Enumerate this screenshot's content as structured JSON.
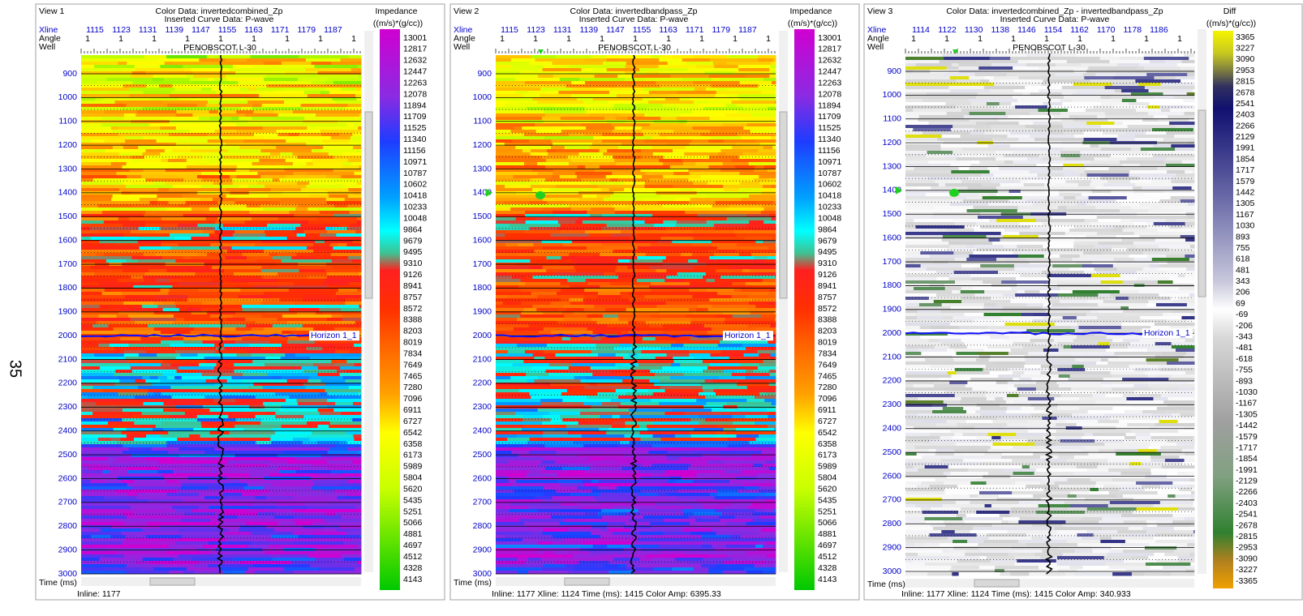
{
  "page_number": "35",
  "panels": [
    {
      "view": "View 1",
      "color_data": "Color Data: invertedcombined_Zp",
      "curve_data": "Inserted Curve Data: P-wave",
      "row_labels": [
        "Xline",
        "Angle",
        "Well"
      ],
      "xlines": [
        1115,
        1123,
        1131,
        1139,
        1147,
        1155,
        1163,
        1171,
        1179,
        1187
      ],
      "angles": [
        1,
        1,
        1,
        1,
        1,
        1,
        1,
        1,
        1
      ],
      "well": "PENOBSCOT L-30",
      "times": [
        900,
        1000,
        1100,
        1200,
        1300,
        1400,
        1500,
        1600,
        1700,
        1800,
        1900,
        2000,
        2100,
        2200,
        2300,
        2400,
        2500,
        2600,
        2700,
        2800,
        2900,
        3000
      ],
      "time_label": "Time (ms)",
      "horizon": "Horizon 1_1",
      "colorbar_title": "Impedance",
      "colorbar_units": "((m/s)*(g/cc))",
      "colorbar_labels": [
        13001,
        12817,
        12632,
        12447,
        12263,
        12078,
        11894,
        11709,
        11525,
        11340,
        11156,
        10971,
        10787,
        10602,
        10418,
        10233,
        10048,
        9864,
        9679,
        9495,
        9310,
        9126,
        8941,
        8757,
        8572,
        8388,
        8203,
        8019,
        7834,
        7649,
        7465,
        7280,
        7096,
        6911,
        6727,
        6542,
        6358,
        6173,
        5989,
        5804,
        5620,
        5435,
        5251,
        5066,
        4881,
        4697,
        4512,
        4328,
        4143
      ],
      "status": "Inline: 1177"
    },
    {
      "view": "View 2",
      "color_data": "Color Data: invertedbandpass_Zp",
      "curve_data": "Inserted Curve Data: P-wave",
      "row_labels": [
        "Xline",
        "Angle",
        "Well"
      ],
      "xlines": [
        1115,
        1123,
        1131,
        1139,
        1147,
        1155,
        1163,
        1171,
        1179,
        1187
      ],
      "angles": [
        1,
        1,
        1,
        1,
        1,
        1,
        1,
        1,
        1
      ],
      "well": "PENOBSCOT L-30",
      "times": [
        900,
        1000,
        1100,
        1200,
        1300,
        1400,
        1500,
        1600,
        1700,
        1800,
        1900,
        2000,
        2100,
        2200,
        2300,
        2400,
        2500,
        2600,
        2700,
        2800,
        2900,
        3000
      ],
      "time_label": "Time (ms)",
      "horizon": "Horizon 1_1",
      "colorbar_title": "Impedance",
      "colorbar_units": "((m/s)*(g/cc))",
      "colorbar_labels": [
        13001,
        12817,
        12632,
        12447,
        12263,
        12078,
        11894,
        11709,
        11525,
        11340,
        11156,
        10971,
        10787,
        10602,
        10418,
        10233,
        10048,
        9864,
        9679,
        9495,
        9310,
        9126,
        8941,
        8757,
        8572,
        8388,
        8203,
        8019,
        7834,
        7649,
        7465,
        7280,
        7096,
        6911,
        6727,
        6542,
        6358,
        6173,
        5989,
        5804,
        5620,
        5435,
        5251,
        5066,
        4881,
        4697,
        4512,
        4328,
        4143
      ],
      "status": "Inline: 1177 Xline: 1124 Time (ms): 1415 Color Amp: 6395.33"
    },
    {
      "view": "View 3",
      "color_data": "Color Data: invertedcombined_Zp - invertedbandpass_Zp",
      "curve_data": "Inserted Curve Data: P-wave",
      "row_labels": [
        "Xline",
        "Angle",
        "Well"
      ],
      "xlines": [
        1114,
        1122,
        1130,
        1138,
        1146,
        1154,
        1162,
        1170,
        1178,
        1186
      ],
      "angles": [
        1,
        1,
        1,
        1,
        1,
        1,
        1,
        1,
        1
      ],
      "well": "PENOBSCOT L-30",
      "times": [
        900,
        1000,
        1100,
        1200,
        1300,
        1400,
        1500,
        1600,
        1700,
        1800,
        1900,
        2000,
        2100,
        2200,
        2300,
        2400,
        2500,
        2600,
        2700,
        2800,
        2900,
        3000
      ],
      "time_label": "Time (ms)",
      "horizon": "Horizon 1_1",
      "colorbar_title": "Diff",
      "colorbar_units": "((m/s)*(g/cc))",
      "colorbar_labels": [
        3365,
        3227,
        3090,
        2953,
        2815,
        2678,
        2541,
        2403,
        2266,
        2129,
        1991,
        1854,
        1717,
        1579,
        1442,
        1305,
        1167,
        1030,
        893,
        755,
        618,
        481,
        343,
        206,
        69,
        -69,
        -206,
        -343,
        -481,
        -618,
        -755,
        -893,
        -1030,
        -1167,
        -1305,
        -1442,
        -1579,
        -1717,
        -1854,
        -1991,
        -2129,
        -2266,
        -2403,
        -2541,
        -2678,
        -2815,
        -2953,
        -3090,
        -3227,
        -3365
      ],
      "status": "Inline: 1177 Xline: 1124 Time (ms): 1415 Color Amp: 340.933"
    }
  ]
}
